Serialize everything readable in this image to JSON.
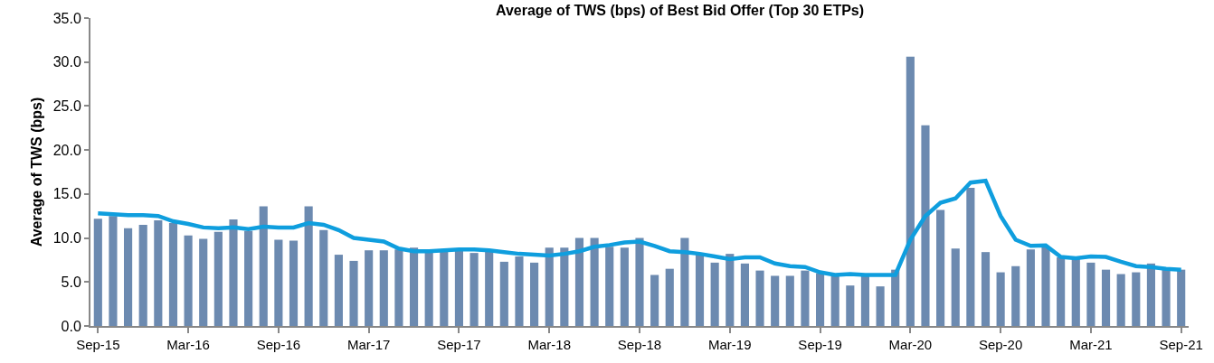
{
  "chart_data": {
    "type": "bar",
    "title": "Average of TWS (bps) of Best Bid Offer (Top 30 ETPs)",
    "ylabel": "Average of TWS (bps)",
    "categories": [
      "Sep-15",
      null,
      null,
      null,
      null,
      null,
      "Mar-16",
      null,
      null,
      null,
      null,
      null,
      "Sep-16",
      null,
      null,
      null,
      null,
      null,
      "Mar-17",
      null,
      null,
      null,
      null,
      null,
      "Sep-17",
      null,
      null,
      null,
      null,
      null,
      "Mar-18",
      null,
      null,
      null,
      null,
      null,
      "Sep-18",
      null,
      null,
      null,
      null,
      null,
      "Mar-19",
      null,
      null,
      null,
      null,
      null,
      "Sep-19",
      null,
      null,
      null,
      null,
      null,
      "Mar-20",
      null,
      null,
      null,
      null,
      null,
      "Sep-20",
      null,
      null,
      null,
      null,
      null,
      "Mar-21",
      null,
      null,
      null,
      null,
      null,
      "Sep-21"
    ],
    "series": [
      {
        "color": "#6c8ab0",
        "values": [
          12.2,
          12.5,
          11.1,
          11.5,
          12.0,
          11.7,
          10.3,
          9.9,
          10.7,
          12.1,
          10.8,
          13.6,
          9.8,
          9.7,
          13.6,
          10.9,
          8.1,
          7.4,
          8.6,
          8.6,
          8.7,
          8.9,
          8.5,
          8.5,
          8.6,
          8.3,
          8.5,
          7.3,
          7.9,
          7.2,
          8.9,
          8.9,
          10.0,
          10.0,
          9.0,
          8.9,
          10.0,
          5.8,
          6.5,
          10.0,
          8.1,
          7.2,
          8.2,
          7.1,
          6.3,
          5.7,
          5.7,
          6.3,
          6.0,
          5.9,
          4.6,
          5.8,
          4.5,
          6.4,
          30.6,
          22.8,
          13.2,
          8.8,
          15.7,
          8.4,
          6.1,
          6.8,
          8.7,
          9.0,
          7.8,
          7.7,
          7.2,
          6.4,
          5.9,
          6.1,
          7.1,
          6.4,
          6.4
        ]
      },
      {
        "type": "line",
        "color": "#0f9ede",
        "marker": "none",
        "line_style": "solid",
        "values": [
          12.8,
          12.7,
          12.6,
          12.6,
          12.5,
          11.9,
          11.6,
          11.2,
          11.1,
          11.2,
          11.0,
          11.3,
          11.2,
          11.2,
          11.7,
          11.5,
          10.9,
          10.0,
          9.8,
          9.6,
          8.8,
          8.5,
          8.5,
          8.6,
          8.7,
          8.7,
          8.6,
          8.4,
          8.2,
          8.1,
          8.0,
          8.2,
          8.5,
          9.0,
          9.2,
          9.5,
          9.6,
          9.1,
          8.5,
          8.4,
          8.2,
          7.9,
          7.6,
          7.8,
          7.8,
          7.1,
          6.8,
          6.7,
          6.1,
          5.8,
          5.9,
          5.8,
          5.8,
          5.8,
          9.8,
          12.5,
          14.0,
          14.5,
          16.3,
          16.5,
          12.5,
          9.8,
          9.1,
          9.15,
          7.85,
          7.7,
          7.9,
          7.85,
          7.3,
          6.8,
          6.7,
          6.5,
          6.4
        ]
      }
    ],
    "ylim": [
      0,
      35
    ],
    "yticks": [
      {
        "value": 0,
        "label": "0.0"
      },
      {
        "value": 5,
        "label": "5.0"
      },
      {
        "value": 10,
        "label": "10.0"
      },
      {
        "value": 15,
        "label": "15.0"
      },
      {
        "value": 20,
        "label": "20.0"
      },
      {
        "value": 25,
        "label": "25.0"
      },
      {
        "value": 30,
        "label": "30.0"
      },
      {
        "value": 35,
        "label": "35.0"
      }
    ],
    "grid": false
  }
}
